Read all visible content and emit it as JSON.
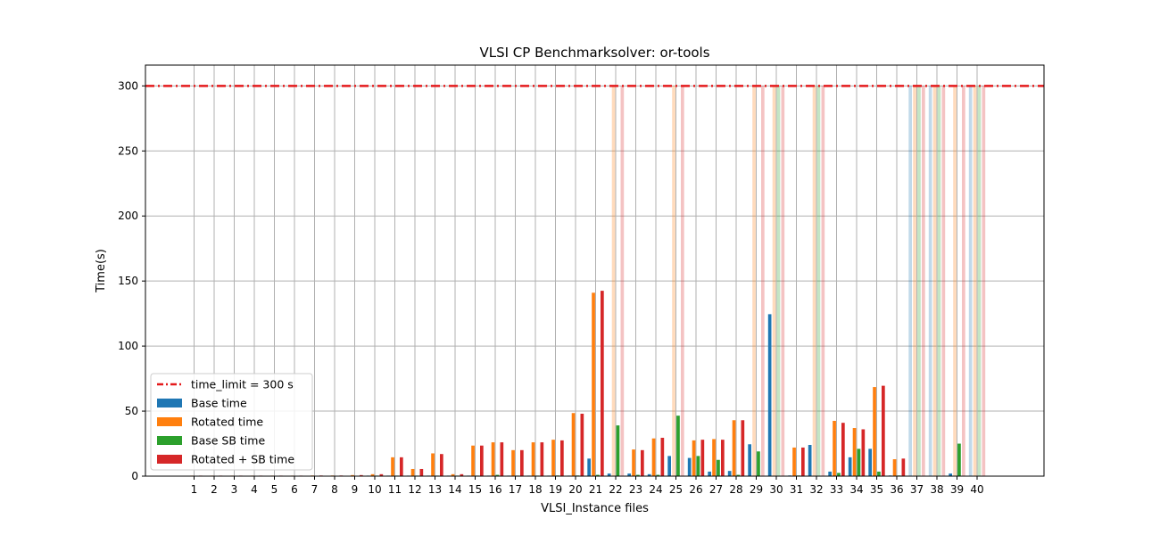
{
  "chart_data": {
    "type": "bar",
    "title": "VLSI CP Benchmarksolver: or-tools",
    "xlabel": "VLSI_Instance files",
    "ylabel": "Time(s)",
    "ylim": [
      0,
      316
    ],
    "yticks": [
      0,
      50,
      100,
      150,
      200,
      250,
      300
    ],
    "grid": true,
    "legend_position": "lower-left",
    "time_limit": {
      "label": "time_limit = 300 s",
      "value": 300,
      "color": "#e41a1c"
    },
    "categories": [
      "1",
      "2",
      "3",
      "4",
      "5",
      "6",
      "7",
      "8",
      "9",
      "10",
      "11",
      "12",
      "13",
      "14",
      "15",
      "16",
      "17",
      "18",
      "19",
      "20",
      "21",
      "22",
      "23",
      "24",
      "25",
      "26",
      "27",
      "28",
      "29",
      "30",
      "31",
      "32",
      "33",
      "34",
      "35",
      "36",
      "37",
      "38",
      "39",
      "40"
    ],
    "series": [
      {
        "name": "Base time",
        "color": "#1f77b4",
        "values": [
          0,
          0,
          0,
          0,
          0,
          0,
          0,
          0,
          0,
          0.2,
          0.2,
          0.2,
          0.2,
          0.2,
          0.3,
          0.3,
          0.3,
          0.3,
          0.3,
          0.3,
          13.5,
          2,
          2,
          1.5,
          15.5,
          14,
          3.5,
          4,
          24.5,
          124.5,
          0.5,
          24,
          3.5,
          14.5,
          21,
          0.5,
          300,
          300,
          2,
          300
        ],
        "timeout": [
          false,
          false,
          false,
          false,
          false,
          false,
          false,
          false,
          false,
          false,
          false,
          false,
          false,
          false,
          false,
          false,
          false,
          false,
          false,
          false,
          false,
          false,
          false,
          false,
          false,
          false,
          false,
          false,
          false,
          false,
          false,
          false,
          false,
          false,
          false,
          false,
          true,
          true,
          false,
          true
        ]
      },
      {
        "name": "Rotated time",
        "color": "#ff7f0e",
        "values": [
          0.2,
          0.2,
          0.3,
          0.3,
          0.3,
          0.4,
          0.5,
          0.5,
          0.8,
          1.5,
          14.5,
          5.5,
          17.5,
          1.5,
          23.5,
          26,
          20,
          26,
          28,
          48.5,
          141,
          300,
          20.5,
          29,
          300,
          27.5,
          28.5,
          43,
          300,
          300,
          22,
          300,
          42.5,
          37,
          68.5,
          13,
          300,
          300,
          300,
          300
        ],
        "timeout": [
          false,
          false,
          false,
          false,
          false,
          false,
          false,
          false,
          false,
          false,
          false,
          false,
          false,
          false,
          false,
          false,
          false,
          false,
          false,
          false,
          false,
          true,
          false,
          false,
          true,
          false,
          false,
          false,
          true,
          true,
          false,
          true,
          false,
          false,
          false,
          false,
          true,
          true,
          true,
          true
        ]
      },
      {
        "name": "Base SB time",
        "color": "#2ca02c",
        "values": [
          0,
          0,
          0,
          0,
          0,
          0,
          0,
          0,
          0,
          0.2,
          0.2,
          0.2,
          0.2,
          0.2,
          0.3,
          1,
          0.3,
          0.3,
          0.5,
          0.5,
          1,
          39,
          1,
          1,
          46.5,
          15.5,
          12.5,
          1,
          19,
          300,
          0.5,
          300,
          2.5,
          21,
          3.5,
          0.5,
          300,
          300,
          25,
          300
        ],
        "timeout": [
          false,
          false,
          false,
          false,
          false,
          false,
          false,
          false,
          false,
          false,
          false,
          false,
          false,
          false,
          false,
          false,
          false,
          false,
          false,
          false,
          false,
          false,
          false,
          false,
          false,
          false,
          false,
          false,
          false,
          true,
          false,
          true,
          false,
          false,
          false,
          false,
          true,
          true,
          false,
          true
        ]
      },
      {
        "name": "Rotated + SB time",
        "color": "#d62728",
        "values": [
          0.2,
          0.2,
          0.3,
          0.3,
          0.3,
          0.4,
          0.5,
          0.5,
          0.8,
          1.5,
          14.5,
          5.5,
          17,
          1.5,
          23.5,
          26,
          20,
          26,
          27.5,
          48,
          142.5,
          300,
          20,
          29.5,
          300,
          28,
          28,
          43,
          300,
          300,
          22,
          300,
          41,
          36,
          69.5,
          13.5,
          300,
          300,
          300,
          300
        ],
        "timeout": [
          false,
          false,
          false,
          false,
          false,
          false,
          false,
          false,
          false,
          false,
          false,
          false,
          false,
          false,
          false,
          false,
          false,
          false,
          false,
          false,
          false,
          true,
          false,
          false,
          true,
          false,
          false,
          false,
          true,
          true,
          false,
          true,
          false,
          false,
          false,
          false,
          true,
          true,
          true,
          true
        ]
      }
    ]
  }
}
